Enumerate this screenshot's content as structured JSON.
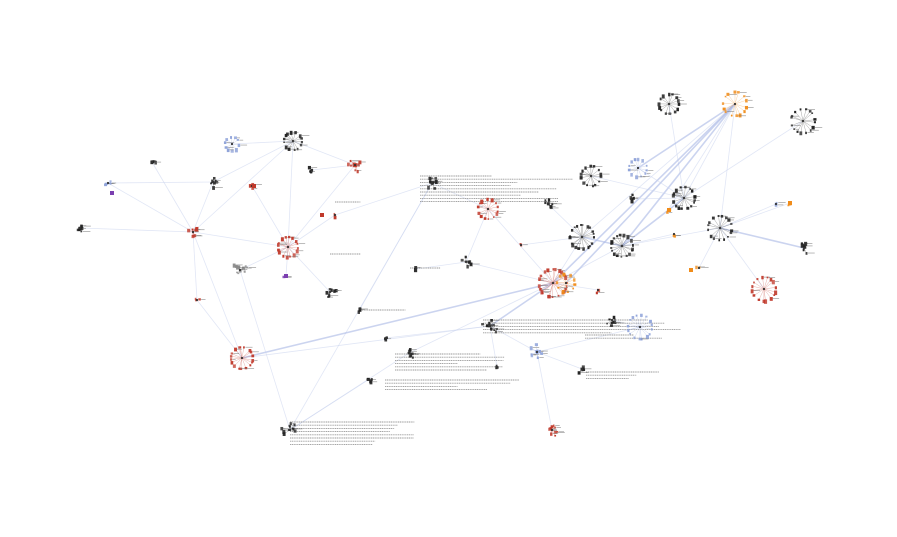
{
  "graph": {
    "type": "network-diagram",
    "background": "#ffffff",
    "colors": {
      "edge": "#c9d3ee",
      "black": "#222222",
      "red": "#c0392b",
      "blue": "#8fa3d9",
      "orange": "#f08c1a",
      "purple": "#7b3fb0",
      "gray": "#8a8a8a"
    },
    "labels_readable": false
  }
}
